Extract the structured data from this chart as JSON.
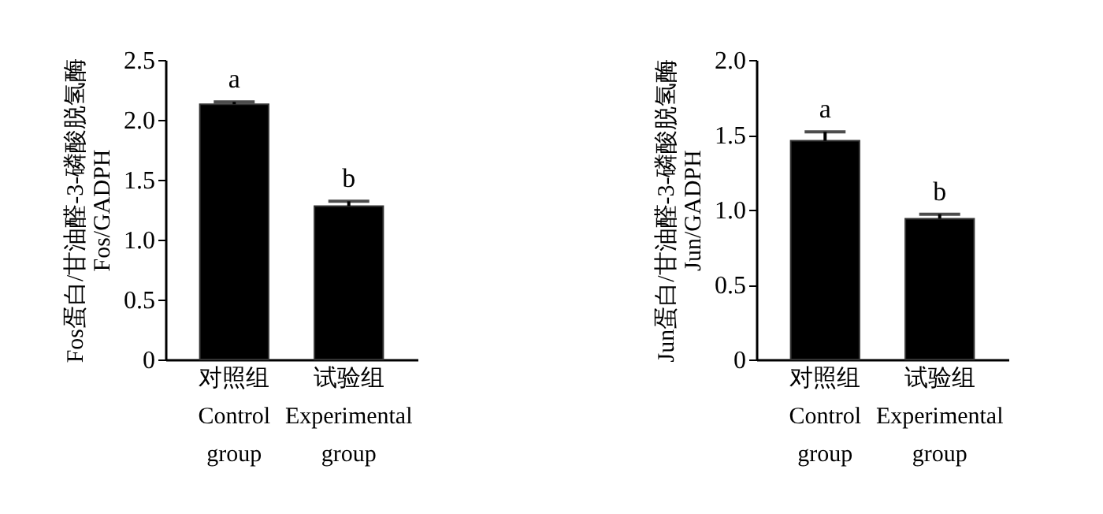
{
  "chart_data": [
    {
      "type": "bar",
      "categories": [
        "对照组\nControl\ngroup",
        "试验组\nExperimental\ngroup"
      ],
      "values": [
        2.13,
        1.28
      ],
      "errors": [
        0.02,
        0.04
      ],
      "color": "#000000",
      "ylabel": "Fos蛋白/甘油醛-3-磷酸脱氢酶\nFos/GADPH",
      "ylim": [
        0,
        2.5
      ],
      "yticks": [
        {
          "value": 0,
          "label": "0"
        },
        {
          "value": 0.5,
          "label": "0.5"
        },
        {
          "value": 1,
          "label": "1.0"
        },
        {
          "value": 1.5,
          "label": "1.5"
        },
        {
          "value": 2,
          "label": "2.0"
        },
        {
          "value": 2.5,
          "label": "2.5"
        }
      ],
      "grid": false,
      "annotations": [
        {
          "text": "a",
          "x": "对照组\nControl\ngroup",
          "y": 2.15
        },
        {
          "text": "b",
          "x": "试验组\nExperimental\ngroup",
          "y": 1.32
        }
      ]
    },
    {
      "type": "bar",
      "categories": [
        "对照组\nControl\ngroup",
        "试验组\nExperimental\ngroup"
      ],
      "values": [
        1.46,
        0.94
      ],
      "errors": [
        0.06,
        0.03
      ],
      "color": "#000000",
      "ylabel": "Jun蛋白/甘油醛-3-磷酸脱氢酶\nJun/GADPH",
      "ylim": [
        0,
        2
      ],
      "yticks": [
        {
          "value": 0,
          "label": "0"
        },
        {
          "value": 0.5,
          "label": "0.5"
        },
        {
          "value": 1,
          "label": "1.0"
        },
        {
          "value": 1.5,
          "label": "1.5"
        },
        {
          "value": 2,
          "label": "2.0"
        }
      ],
      "grid": false,
      "annotations": [
        {
          "text": "a",
          "x": "对照组\nControl\ngroup",
          "y": 1.52
        },
        {
          "text": "b",
          "x": "试验组\nExperimental\ngroup",
          "y": 0.97
        }
      ]
    }
  ]
}
